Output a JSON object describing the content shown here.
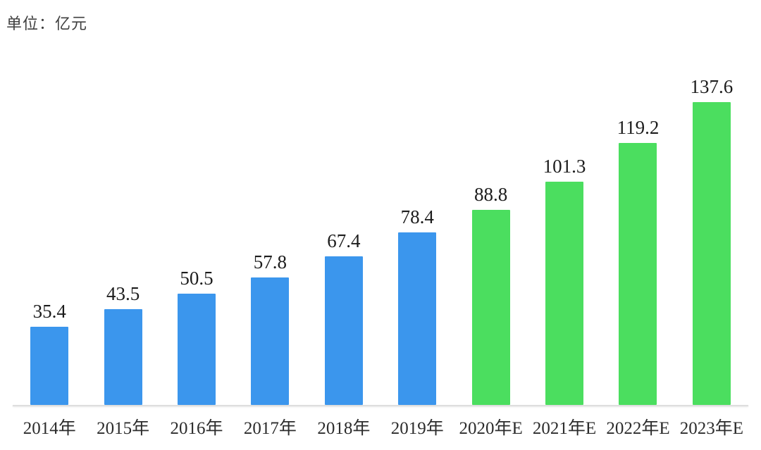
{
  "chart_data": {
    "type": "bar",
    "unit_label": "单位：亿元",
    "categories": [
      "2014年",
      "2015年",
      "2016年",
      "2017年",
      "2018年",
      "2019年",
      "2020年E",
      "2021年E",
      "2022年E",
      "2023年E"
    ],
    "values": [
      35.4,
      43.5,
      50.5,
      57.8,
      67.4,
      78.4,
      88.8,
      101.3,
      119.2,
      137.6
    ],
    "bar_color_keys": [
      "actual",
      "actual",
      "actual",
      "actual",
      "actual",
      "actual",
      "estimate",
      "estimate",
      "estimate",
      "estimate"
    ],
    "palette": {
      "actual": "#3B96ED",
      "estimate": "#4BDE5F"
    },
    "value_label_color": "#1c1c1c",
    "axis_label_color": "#2c2c2c",
    "baseline_color": "#dedede",
    "ylim": [
      0,
      137.6
    ],
    "grid": false,
    "legend": false,
    "value_labels_shown": true,
    "xlabel": "",
    "ylabel": ""
  }
}
